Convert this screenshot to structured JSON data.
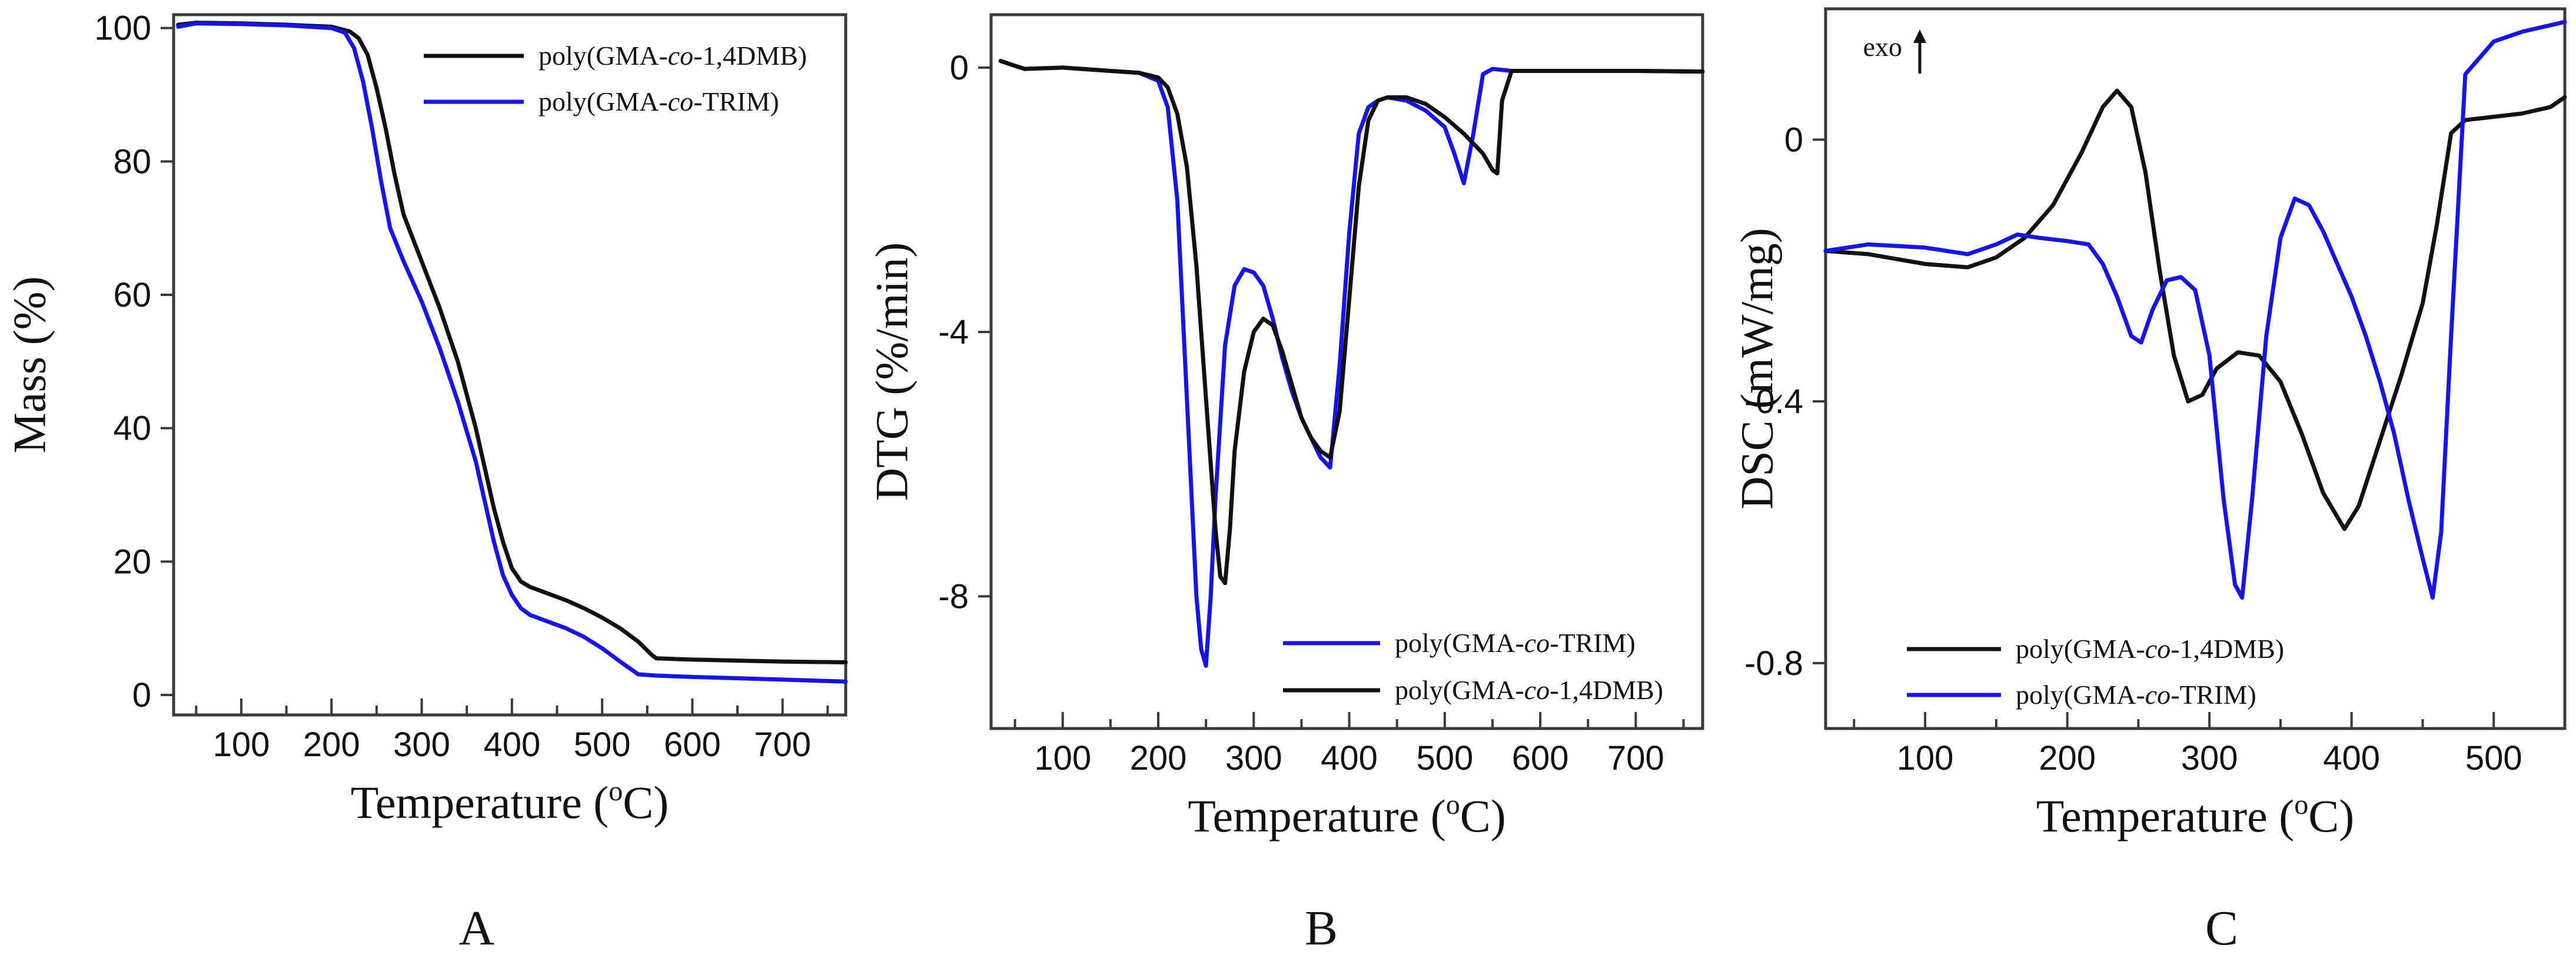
{
  "colors": {
    "black": "#111111",
    "blue": "#1515e6"
  },
  "chart_data": [
    {
      "type": "line",
      "panel_label": "A",
      "xlabel": "Temperature (°C)",
      "ylabel": "Mass (%)",
      "xlim": [
        25,
        770
      ],
      "ylim": [
        -3,
        102
      ],
      "xticks": [
        100,
        200,
        300,
        400,
        500,
        600,
        700
      ],
      "yticks": [
        0,
        20,
        40,
        60,
        80,
        100
      ],
      "legend_position": "top-right",
      "series": [
        {
          "name": "poly(GMA-co-1,4DMB)",
          "name_parts": [
            "poly(GMA-",
            "co",
            "-1,4DMB)"
          ],
          "color": "#111111",
          "x": [
            30,
            50,
            100,
            150,
            200,
            220,
            230,
            240,
            250,
            260,
            270,
            280,
            300,
            320,
            340,
            360,
            370,
            380,
            390,
            400,
            410,
            420,
            440,
            460,
            480,
            500,
            520,
            540,
            555,
            560,
            600,
            700,
            770
          ],
          "y": [
            100.5,
            100.8,
            100.7,
            100.5,
            100.2,
            99.5,
            98.5,
            96,
            91,
            85,
            78,
            72,
            65,
            58,
            50,
            40,
            34,
            28,
            23,
            19,
            17,
            16.2,
            15.2,
            14.2,
            13,
            11.6,
            10,
            8,
            6,
            5.5,
            5.3,
            5.0,
            4.9
          ]
        },
        {
          "name": "poly(GMA-co-TRIM)",
          "name_parts": [
            "poly(GMA-",
            "co",
            "-TRIM)"
          ],
          "color": "#1515e6",
          "x": [
            30,
            50,
            100,
            150,
            200,
            215,
            225,
            235,
            245,
            255,
            265,
            280,
            300,
            320,
            340,
            360,
            370,
            380,
            390,
            400,
            410,
            420,
            440,
            460,
            480,
            500,
            520,
            540,
            560,
            600,
            700,
            770
          ],
          "y": [
            100.2,
            100.7,
            100.6,
            100.4,
            100.0,
            99.3,
            97,
            92,
            85,
            77,
            70,
            65,
            59,
            52,
            44,
            35,
            29,
            23,
            18,
            15,
            13,
            12,
            11,
            10,
            8.7,
            7,
            5,
            3.1,
            2.9,
            2.7,
            2.3,
            2.0
          ]
        }
      ]
    },
    {
      "type": "line",
      "panel_label": "B",
      "xlabel": "Temperature (°C)",
      "ylabel": "DTG (%/min)",
      "xlim": [
        25,
        770
      ],
      "ylim": [
        -10,
        0.8
      ],
      "xticks": [
        100,
        200,
        300,
        400,
        500,
        600,
        700
      ],
      "yticks": [
        0,
        -4,
        -8
      ],
      "legend_position": "bottom-right",
      "series": [
        {
          "name": "poly(GMA-co-TRIM)",
          "name_parts": [
            "poly(GMA-",
            "co",
            "-TRIM)"
          ],
          "color": "#1515e6",
          "x": [
            35,
            45,
            60,
            100,
            150,
            180,
            200,
            210,
            220,
            230,
            240,
            245,
            250,
            255,
            260,
            270,
            280,
            290,
            300,
            310,
            320,
            330,
            340,
            350,
            360,
            370,
            380,
            390,
            400,
            410,
            420,
            430,
            440,
            460,
            480,
            500,
            510,
            520,
            530,
            540,
            550,
            570,
            600,
            700,
            770
          ],
          "y": [
            0.1,
            0.05,
            -0.02,
            0,
            -0.05,
            -0.08,
            -0.2,
            -0.6,
            -2.0,
            -5,
            -8,
            -8.8,
            -9.05,
            -8.0,
            -6.5,
            -4.2,
            -3.3,
            -3.05,
            -3.1,
            -3.3,
            -3.8,
            -4.4,
            -4.9,
            -5.3,
            -5.6,
            -5.9,
            -6.05,
            -4.5,
            -2.5,
            -1.0,
            -0.6,
            -0.5,
            -0.45,
            -0.5,
            -0.65,
            -0.9,
            -1.3,
            -1.75,
            -1.0,
            -0.1,
            -0.02,
            -0.05,
            -0.05,
            -0.05,
            -0.06
          ]
        },
        {
          "name": "poly(GMA-co-1,4DMB)",
          "name_parts": [
            "poly(GMA-",
            "co",
            "-1,4DMB)"
          ],
          "color": "#111111",
          "x": [
            35,
            45,
            60,
            100,
            150,
            180,
            200,
            210,
            220,
            230,
            240,
            250,
            260,
            265,
            270,
            275,
            280,
            290,
            300,
            310,
            320,
            330,
            340,
            350,
            360,
            370,
            380,
            390,
            400,
            410,
            420,
            430,
            440,
            460,
            480,
            500,
            520,
            540,
            550,
            555,
            560,
            570,
            600,
            700,
            770
          ],
          "y": [
            0.1,
            0.05,
            -0.02,
            0,
            -0.05,
            -0.08,
            -0.15,
            -0.3,
            -0.7,
            -1.5,
            -3,
            -5,
            -7,
            -7.7,
            -7.8,
            -7.0,
            -5.8,
            -4.6,
            -4.0,
            -3.8,
            -3.9,
            -4.3,
            -4.8,
            -5.3,
            -5.6,
            -5.8,
            -5.9,
            -5.2,
            -3.5,
            -1.8,
            -0.8,
            -0.5,
            -0.45,
            -0.45,
            -0.55,
            -0.75,
            -1.0,
            -1.3,
            -1.55,
            -1.6,
            -0.5,
            -0.05,
            -0.05,
            -0.05,
            -0.06
          ]
        }
      ]
    },
    {
      "type": "line",
      "panel_label": "C",
      "xlabel": "Temperature (°C)",
      "ylabel": "DSC (mW/mg)",
      "annotation": "exo",
      "xlim": [
        30,
        550
      ],
      "ylim": [
        -0.9,
        0.2
      ],
      "xticks": [
        100,
        200,
        300,
        400,
        500
      ],
      "yticks": [
        0,
        -0.4,
        -0.8
      ],
      "ytick_labels": [
        "0",
        "-0.4",
        "-0.8"
      ],
      "legend_position": "bottom-left",
      "series": [
        {
          "name": "poly(GMA-co-1,4DMB)",
          "name_parts": [
            "poly(GMA-",
            "co",
            "-1,4DMB)"
          ],
          "color": "#111111",
          "x": [
            30,
            60,
            100,
            130,
            150,
            170,
            190,
            210,
            225,
            235,
            245,
            255,
            265,
            275,
            285,
            295,
            305,
            320,
            335,
            350,
            365,
            380,
            395,
            405,
            420,
            435,
            450,
            460,
            470,
            480,
            500,
            520,
            540,
            550
          ],
          "y": [
            -0.17,
            -0.175,
            -0.19,
            -0.195,
            -0.18,
            -0.15,
            -0.1,
            -0.02,
            0.05,
            0.075,
            0.05,
            -0.05,
            -0.2,
            -0.33,
            -0.4,
            -0.39,
            -0.35,
            -0.325,
            -0.33,
            -0.37,
            -0.45,
            -0.54,
            -0.595,
            -0.56,
            -0.46,
            -0.36,
            -0.25,
            -0.13,
            0.01,
            0.03,
            0.035,
            0.04,
            0.05,
            0.065
          ]
        },
        {
          "name": "poly(GMA-co-TRIM)",
          "name_parts": [
            "poly(GMA-",
            "co",
            "-TRIM)"
          ],
          "color": "#1515e6",
          "x": [
            30,
            60,
            100,
            130,
            150,
            165,
            180,
            200,
            215,
            225,
            235,
            245,
            252,
            260,
            270,
            280,
            290,
            300,
            310,
            318,
            323,
            330,
            340,
            350,
            360,
            370,
            380,
            390,
            400,
            410,
            420,
            430,
            440,
            450,
            457,
            463,
            470,
            480,
            500,
            520,
            540,
            550
          ],
          "y": [
            -0.17,
            -0.16,
            -0.165,
            -0.175,
            -0.16,
            -0.145,
            -0.15,
            -0.155,
            -0.16,
            -0.19,
            -0.24,
            -0.3,
            -0.31,
            -0.26,
            -0.215,
            -0.21,
            -0.23,
            -0.33,
            -0.55,
            -0.68,
            -0.7,
            -0.55,
            -0.3,
            -0.15,
            -0.09,
            -0.1,
            -0.14,
            -0.19,
            -0.24,
            -0.3,
            -0.37,
            -0.45,
            -0.55,
            -0.64,
            -0.7,
            -0.6,
            -0.3,
            0.1,
            0.15,
            0.165,
            0.175,
            0.18
          ]
        }
      ]
    }
  ]
}
